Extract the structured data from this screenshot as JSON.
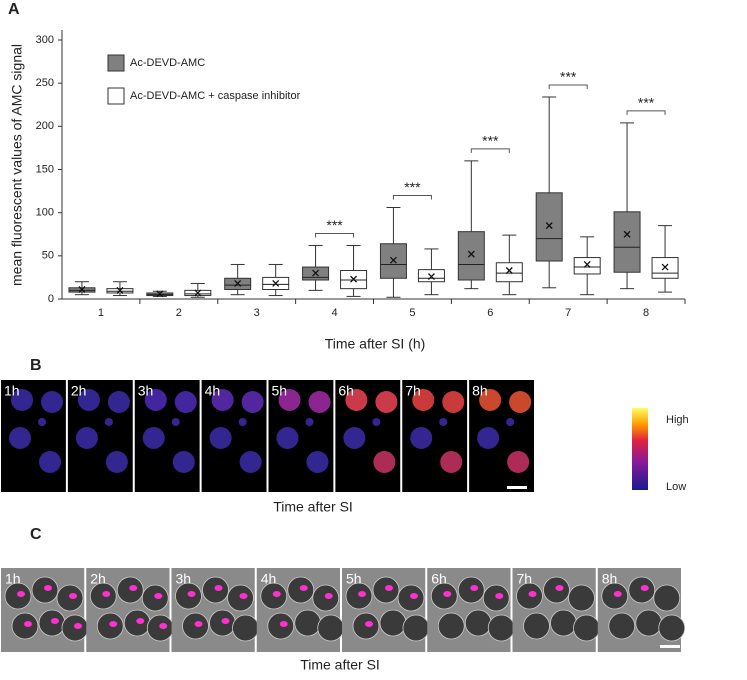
{
  "chart_data": {
    "type": "box",
    "panel_label": "A",
    "ylabel": "mean fluorescent values of AMC signal",
    "xlabel": "Time after SI (h)",
    "categories": [
      "1",
      "2",
      "3",
      "4",
      "5",
      "6",
      "7",
      "8"
    ],
    "ylim": [
      0,
      300
    ],
    "yticks": [
      0,
      50,
      100,
      150,
      200,
      250,
      300
    ],
    "series": [
      {
        "name": "Ac-DEVD-AMC",
        "color": "#808080",
        "low": [
          5,
          3,
          5,
          10,
          2,
          12,
          13,
          12
        ],
        "q1": [
          8,
          4,
          11,
          22,
          24,
          22,
          44,
          31
        ],
        "median": [
          10,
          5,
          16,
          25,
          40,
          40,
          70,
          60
        ],
        "q3": [
          13,
          7,
          24,
          37,
          64,
          78,
          123,
          101
        ],
        "high": [
          20,
          9,
          40,
          62,
          106,
          160,
          234,
          204
        ],
        "mean": [
          11,
          6,
          18,
          30,
          45,
          52,
          85,
          75
        ]
      },
      {
        "name": "Ac-DEVD-AMC + caspase inhibitor",
        "color": "#ffffff",
        "low": [
          4,
          2,
          4,
          3,
          5,
          5,
          5,
          8
        ],
        "q1": [
          7,
          4,
          11,
          12,
          20,
          20,
          29,
          24
        ],
        "median": [
          9,
          6,
          17,
          22,
          24,
          30,
          37,
          30
        ],
        "q3": [
          12,
          10,
          25,
          33,
          34,
          42,
          48,
          48
        ],
        "high": [
          20,
          18,
          40,
          62,
          58,
          74,
          72,
          85
        ],
        "mean": [
          10,
          7,
          18,
          23,
          26,
          33,
          40,
          37
        ]
      }
    ],
    "significance": [
      null,
      null,
      null,
      "***",
      "***",
      "***",
      "***",
      "***"
    ]
  },
  "panel_b": {
    "label": "B",
    "frames": [
      "1h",
      "2h",
      "3h",
      "4h",
      "5h",
      "6h",
      "7h",
      "8h"
    ],
    "colorbar_high": "High",
    "colorbar_low": "Low",
    "xlabel": "Time after SI"
  },
  "panel_c": {
    "label": "C",
    "frames": [
      "1h",
      "2h",
      "3h",
      "4h",
      "5h",
      "6h",
      "7h",
      "8h"
    ],
    "xlabel": "Time after SI"
  }
}
